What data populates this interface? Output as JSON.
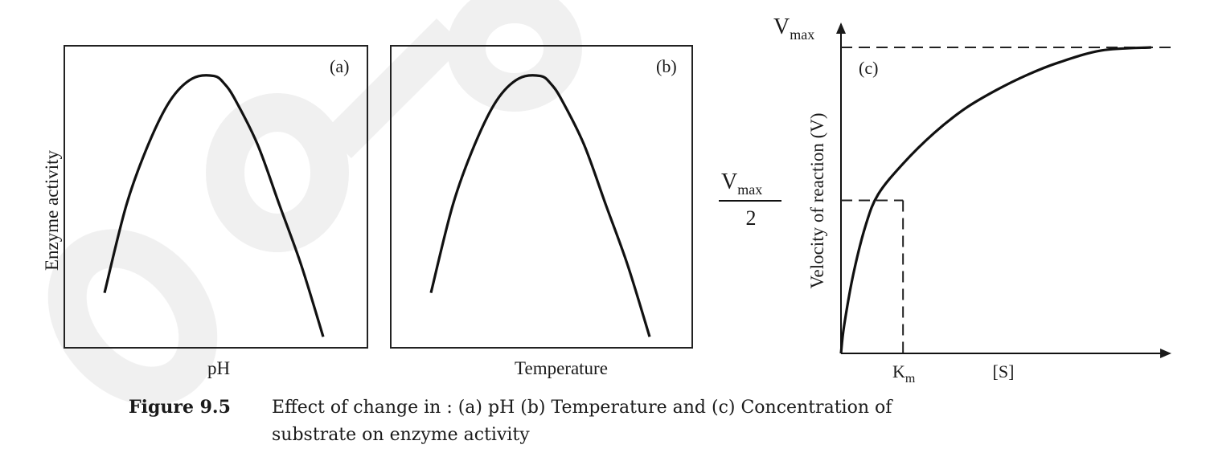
{
  "chart_data": [
    {
      "type": "line",
      "panel_label": "(a)",
      "ylabel": "Enzyme activity",
      "xlabel": "pH",
      "x": [
        0.0,
        0.1,
        0.2,
        0.3,
        0.4,
        0.5,
        0.55,
        0.6,
        0.7,
        0.8,
        0.9,
        1.0
      ],
      "values": [
        0.2,
        0.52,
        0.74,
        0.9,
        0.98,
        0.99,
        0.96,
        0.9,
        0.74,
        0.52,
        0.3,
        0.04
      ],
      "ylim": [
        0,
        1.1
      ],
      "grid": false
    },
    {
      "type": "line",
      "panel_label": "(b)",
      "xlabel": "Temperature",
      "x": [
        0.0,
        0.1,
        0.2,
        0.3,
        0.4,
        0.5,
        0.55,
        0.6,
        0.7,
        0.8,
        0.9,
        1.0
      ],
      "values": [
        0.2,
        0.52,
        0.74,
        0.9,
        0.98,
        0.99,
        0.96,
        0.9,
        0.74,
        0.52,
        0.3,
        0.04
      ],
      "ylim": [
        0,
        1.1
      ],
      "grid": false
    },
    {
      "type": "line",
      "panel_label": "(c)",
      "ylabel": "Velocity of reaction (V)",
      "xlabel": "[S]",
      "ytick_top": {
        "base": "V",
        "sub": "max"
      },
      "ytick_half": {
        "base": "V",
        "sub": "max",
        "den": "2"
      },
      "xtick_km": {
        "base": "K",
        "sub": "m"
      },
      "x": [
        0,
        0.05,
        0.2,
        0.4,
        0.6,
        1.0,
        1.5,
        2.0,
        2.5,
        3.0,
        3.5,
        4.2,
        5.0
      ],
      "values": [
        0,
        0.09,
        0.26,
        0.42,
        0.52,
        0.62,
        0.72,
        0.8,
        0.86,
        0.91,
        0.95,
        0.99,
        1.0
      ],
      "vmax": 1.0,
      "km": 1.0,
      "xlim": [
        0,
        5.3
      ],
      "ylim": [
        0,
        1.0
      ],
      "grid": false
    }
  ],
  "caption": {
    "figure_number": "Figure 9.5",
    "text_line1": "Effect of change in : (a) pH  (b) Temperature and (c) Concentration of",
    "text_line2": "substrate on enzyme activity"
  },
  "watermark": "not to be"
}
